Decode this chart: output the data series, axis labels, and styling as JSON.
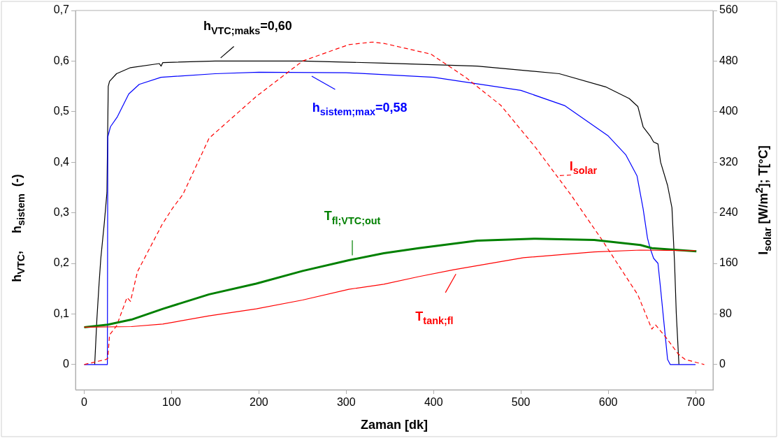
{
  "chart_data": {
    "type": "line",
    "xlabel": "Zaman [dk]",
    "ylabel": "h$_{VTC}$,     h$_{sistem}$  (-)",
    "y2label": "I$_{solar}$ [W/m$^{2}$]; T[°C]",
    "xlim": [
      -10,
      720
    ],
    "xticks": [
      0,
      100,
      200,
      300,
      400,
      500,
      600,
      700
    ],
    "ylim": [
      -0.05,
      0.7
    ],
    "yticks": [
      0,
      {
        "value": 0.1,
        "label": "0,1"
      },
      {
        "value": 0.2,
        "label": "0,2"
      },
      {
        "value": 0.3,
        "label": "0,3"
      },
      {
        "value": 0.4,
        "label": "0,4"
      },
      {
        "value": 0.5,
        "label": "0,5"
      },
      {
        "value": 0.6,
        "label": "0,6"
      },
      {
        "value": 0.7,
        "label": "0,7"
      }
    ],
    "y2lim": [
      -40,
      560
    ],
    "y2ticks": [
      0,
      80,
      160,
      240,
      320,
      400,
      480,
      560
    ],
    "series": [
      {
        "name": "h$_{VTC;maks}$=0,60",
        "color": "#000000",
        "x": [
          12,
          14.5,
          17,
          19,
          23,
          26,
          27.5,
          29,
          37,
          53,
          86,
          88,
          90,
          150,
          250,
          343,
          450,
          544,
          597,
          624,
          634,
          640,
          648,
          652,
          657,
          660,
          668,
          673,
          676,
          678,
          681
        ],
        "values": [
          0,
          0.09,
          0.16,
          0.21,
          0.28,
          0.34,
          0.55,
          0.56,
          0.575,
          0.587,
          0.595,
          0.59,
          0.597,
          0.6,
          0.6,
          0.596,
          0.59,
          0.575,
          0.549,
          0.526,
          0.51,
          0.47,
          0.452,
          0.44,
          0.436,
          0.4,
          0.354,
          0.31,
          0.2,
          0.1,
          0
        ]
      },
      {
        "name": "h$_{sistem;max}$=0,58",
        "color": "#0000ff",
        "x": [
          0,
          26.5,
          27,
          30,
          38,
          51,
          63,
          88,
          150,
          200,
          300,
          400,
          500,
          550,
          600,
          620,
          633,
          640,
          645,
          648,
          652,
          657,
          660,
          664,
          668,
          671,
          700
        ],
        "values": [
          0,
          0,
          0.45,
          0.47,
          0.49,
          0.535,
          0.554,
          0.568,
          0.575,
          0.578,
          0.577,
          0.568,
          0.542,
          0.512,
          0.452,
          0.415,
          0.373,
          0.308,
          0.25,
          0.23,
          0.21,
          0.2,
          0.15,
          0.08,
          0.01,
          0,
          0
        ]
      },
      {
        "name": "I$_{solar}$",
        "axis": "y2",
        "line_style": "dashed",
        "color": "#ff0000",
        "x": [
          0,
          25,
          27,
          29,
          37,
          49,
          53,
          61,
          89,
          101,
          113,
          143,
          197,
          250,
          303,
          330,
          343,
          397,
          437,
          477,
          517,
          557,
          592,
          634,
          650,
          654,
          666,
          680,
          688,
          710
        ],
        "values": [
          0,
          8,
          10,
          47,
          61,
          106,
          100,
          147,
          221,
          247,
          269,
          358,
          424,
          480,
          506,
          510,
          508,
          491,
          454,
          410,
          343,
          269,
          199,
          110,
          56,
          63,
          43,
          17,
          8,
          0
        ]
      },
      {
        "name": "T$_{fl;VTC;out}$",
        "axis": "y2",
        "color": "#008000",
        "x": [
          0,
          27,
          37,
          54,
          90,
          143,
          197,
          250,
          303,
          343,
          383,
          450,
          517,
          584,
          637,
          650,
          701
        ],
        "values": [
          59,
          63,
          66,
          71,
          88,
          111,
          128,
          148,
          165,
          176,
          184,
          196,
          199,
          197,
          189,
          184,
          179
        ]
      },
      {
        "name": "T$_{tank;fl}$",
        "axis": "y2",
        "color": "#ff0000",
        "x": [
          0,
          54,
          90,
          143,
          197,
          250,
          303,
          343,
          383,
          423,
          503,
          584,
          637,
          700
        ],
        "values": [
          59,
          60,
          64,
          77,
          88,
          102,
          119,
          127,
          139,
          150,
          169,
          178,
          181,
          180
        ]
      }
    ]
  }
}
